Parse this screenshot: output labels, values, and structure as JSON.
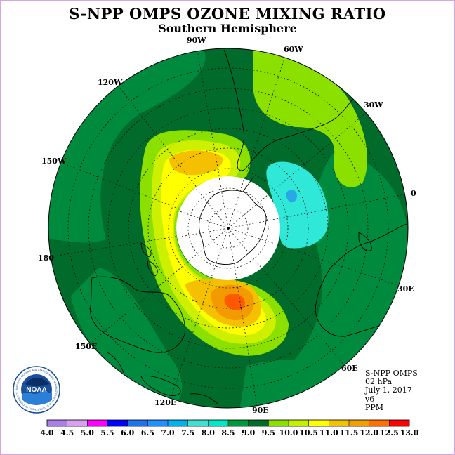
{
  "title": "S-NPP OMPS OZONE MIXING RATIO",
  "subtitle": "Southern Hemisphere",
  "longitude_labels": {
    "w90": "90W",
    "w60": "60W",
    "w30": "30W",
    "w120": "120W",
    "w150": "150W",
    "zero": "0",
    "deg180": "180",
    "e30": "30E",
    "e60": "60E",
    "e90": "90E",
    "e120": "120E",
    "e150": "150E"
  },
  "info": {
    "instrument": "S-NPP OMPS",
    "level": "02 hPa",
    "date": "July 1, 2017",
    "version": "v6",
    "units": "PPM"
  },
  "logo": {
    "text": "NOAA",
    "ring_text": "NATIONAL OCEANIC AND ATMOSPHERIC ADMINISTRATION · U.S. DEPARTMENT OF COMMERCE"
  },
  "colorbar": {
    "ticks": [
      "4.0",
      "4.5",
      "5.0",
      "5.5",
      "6.0",
      "6.5",
      "7.0",
      "7.5",
      "8.0",
      "8.5",
      "9.0",
      "9.5",
      "10.0",
      "10.5",
      "11.0",
      "11.5",
      "12.0",
      "12.5",
      "13.0"
    ],
    "colors": [
      "#a97fe8",
      "#d8a0f0",
      "#ff00ff",
      "#0000ff",
      "#1e72ee",
      "#1e90ff",
      "#00b2ee",
      "#40e0d0",
      "#00e8c8",
      "#009a3e",
      "#006b2a",
      "#8be000",
      "#c4f000",
      "#ffff00",
      "#f2c200",
      "#f2a000",
      "#ff7000",
      "#ff0000",
      "#8b4513"
    ]
  },
  "map": {
    "ocean_color": "#00843d",
    "levels": [
      {
        "value": 8.5,
        "color": "#008a3e"
      },
      {
        "value": 9.0,
        "color": "#006b2a"
      },
      {
        "value": 9.5,
        "color": "#8be000"
      },
      {
        "value": 10.0,
        "color": "#ccf000"
      },
      {
        "value": 10.5,
        "color": "#ffff00"
      },
      {
        "value": 11.0,
        "color": "#f5c000"
      },
      {
        "value": 11.5,
        "color": "#f29a00"
      },
      {
        "value": 12.0,
        "color": "#ff5a00"
      },
      {
        "value": 7.5,
        "color": "#30e8d8"
      },
      {
        "value": 7.0,
        "color": "#29a8e8"
      }
    ]
  }
}
